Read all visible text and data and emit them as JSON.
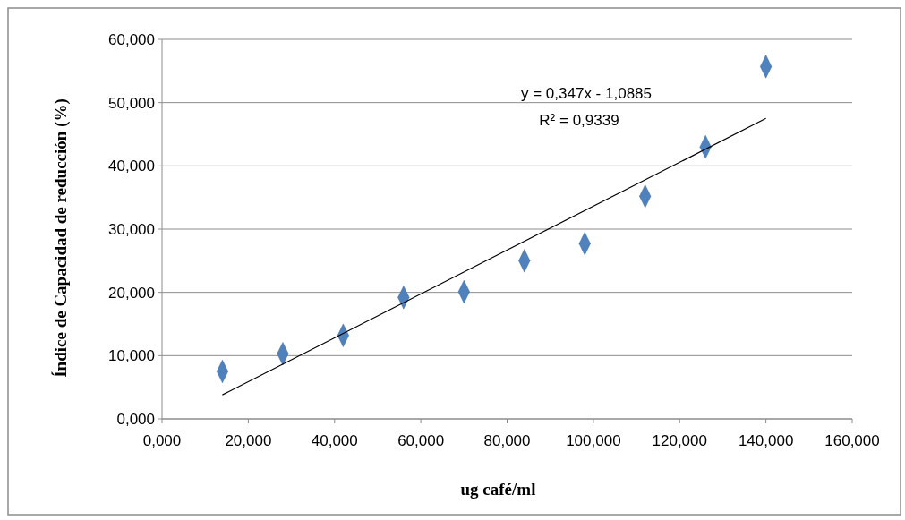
{
  "chart_data": {
    "type": "scatter",
    "xlabel": "ug café/ml",
    "ylabel": "Índice de Capacidad de reducción (%)",
    "xlim": [
      0,
      160
    ],
    "ylim": [
      0,
      60
    ],
    "xticks": [
      {
        "value": 0,
        "label": "0,000"
      },
      {
        "value": 20,
        "label": "20,000"
      },
      {
        "value": 40,
        "label": "40,000"
      },
      {
        "value": 60,
        "label": "60,000"
      },
      {
        "value": 80,
        "label": "80,000"
      },
      {
        "value": 100,
        "label": "100,000"
      },
      {
        "value": 120,
        "label": "120,000"
      },
      {
        "value": 140,
        "label": "140,000"
      },
      {
        "value": 160,
        "label": "160,000"
      }
    ],
    "yticks": [
      {
        "value": 0,
        "label": "0,000"
      },
      {
        "value": 10,
        "label": "10,000"
      },
      {
        "value": 20,
        "label": "20,000"
      },
      {
        "value": 30,
        "label": "30,000"
      },
      {
        "value": 40,
        "label": "40,000"
      },
      {
        "value": 50,
        "label": "50,000"
      },
      {
        "value": 60,
        "label": "60,000"
      }
    ],
    "grid": "y",
    "x": [
      14,
      28,
      42,
      56,
      70,
      84,
      98,
      112,
      126,
      140
    ],
    "series": [
      {
        "color": "#4f81bd",
        "marker": "diamond",
        "values": [
          7.5,
          10.3,
          13.2,
          19.2,
          20.1,
          25.0,
          27.7,
          35.2,
          43.0,
          55.7
        ]
      },
      {
        "type": "line",
        "color": "#000000",
        "x": [
          14,
          140
        ],
        "values": [
          3.8,
          47.5
        ],
        "marker": "none",
        "line_style": "solid"
      }
    ],
    "annotations": [
      "y = 0,347x - 1,0885",
      "R² = 0,9339"
    ]
  }
}
